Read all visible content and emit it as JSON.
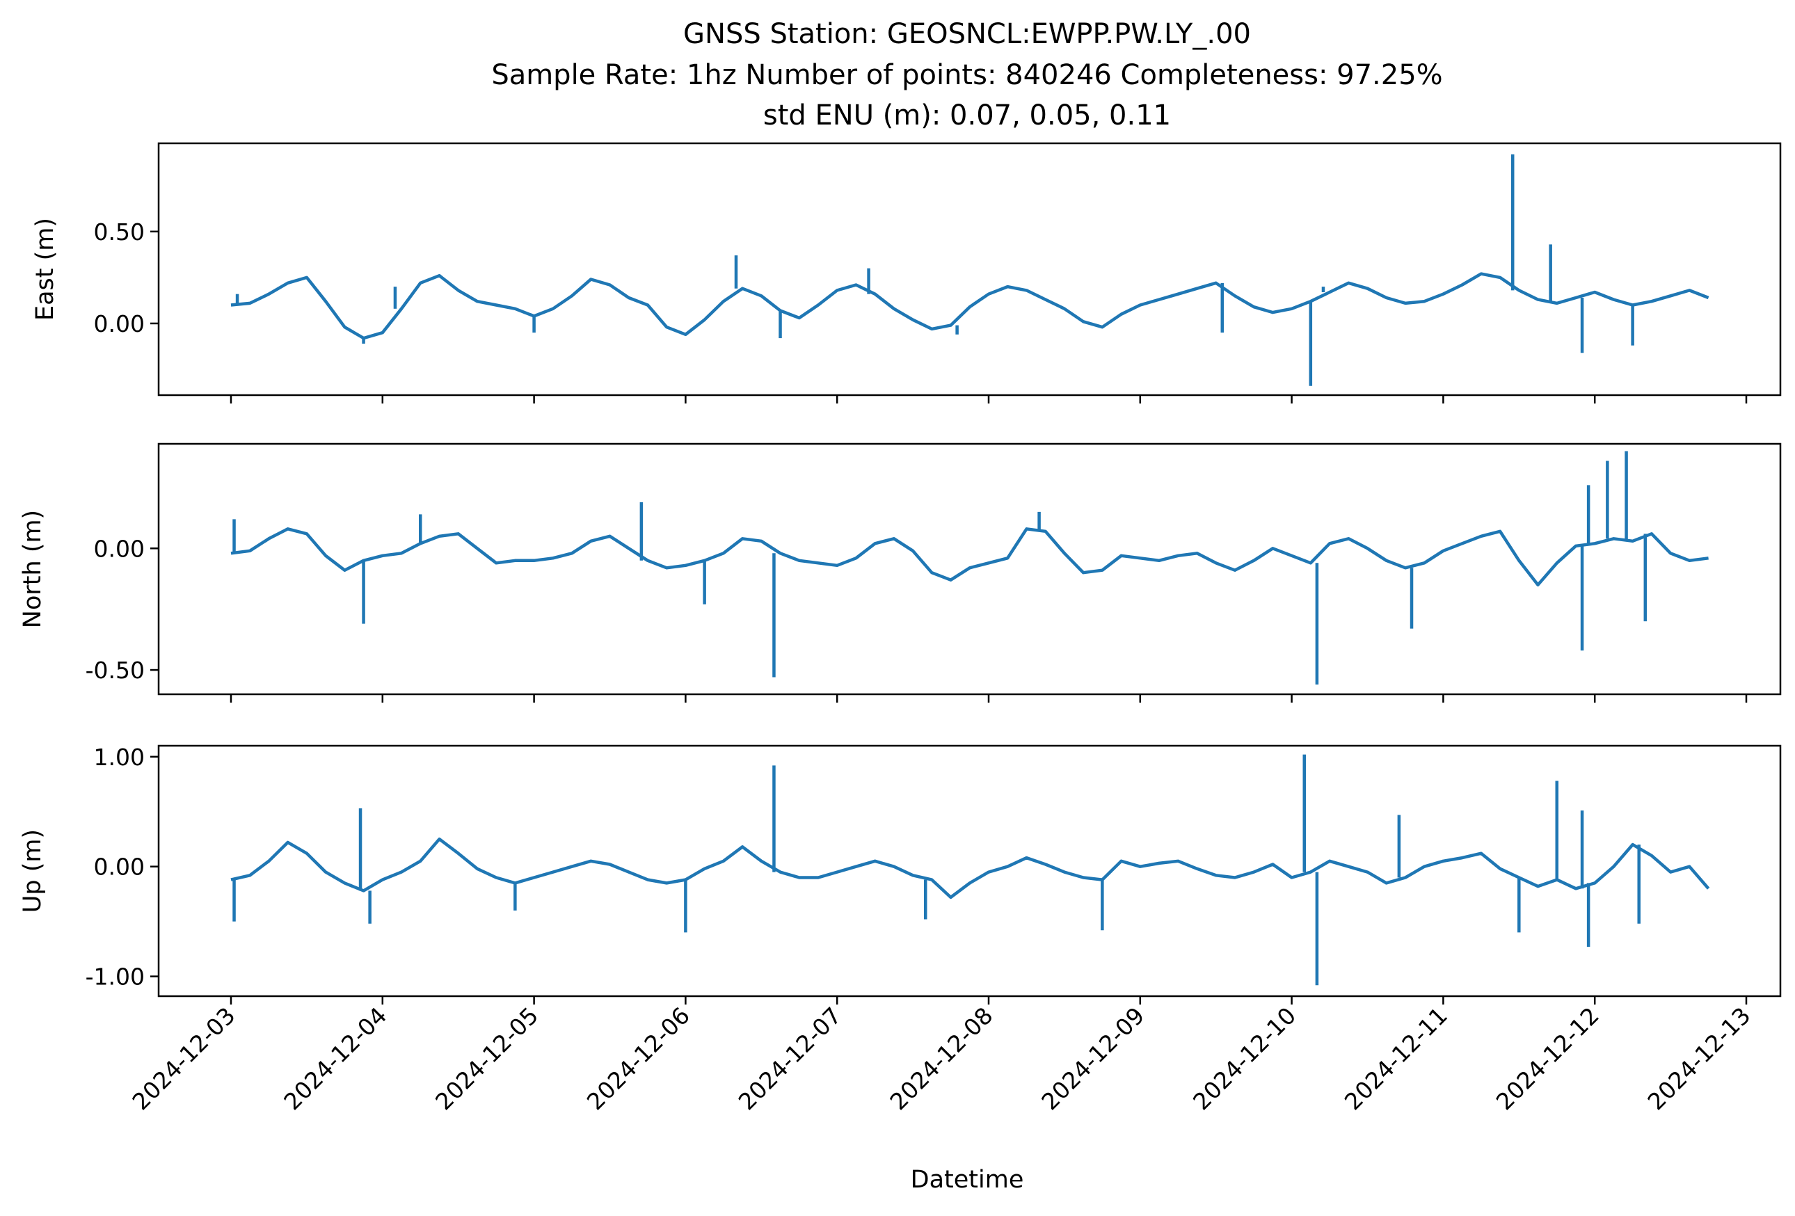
{
  "chart_data": {
    "type": "line",
    "title_lines": [
      "GNSS Station: GEOSNCL:EWPP.PW.LY_.00",
      "Sample Rate: 1hz   Number of points: 840246    Completeness:  97.25%",
      "std ENU (m):  0.07, 0.05, 0.11"
    ],
    "xlabel": "Datetime",
    "x_range": [
      "2024-12-03",
      "2024-12-12 18:00"
    ],
    "x_ticks": [
      "2024-12-03",
      "2024-12-04",
      "2024-12-05",
      "2024-12-06",
      "2024-12-07",
      "2024-12-08",
      "2024-12-09",
      "2024-12-10",
      "2024-12-11",
      "2024-12-12",
      "2024-12-13"
    ],
    "color": "#1f77b4",
    "grid": false,
    "panels": [
      {
        "ylabel": "East (m)",
        "ylim": [
          -0.39,
          0.98
        ],
        "yticks": [
          {
            "value": 0.5,
            "label": "0.50"
          },
          {
            "value": 0.0,
            "label": "0.00"
          }
        ],
        "series": {
          "x": [
            "2024-12-03 00:00",
            "2024-12-03 03:00",
            "2024-12-03 06:00",
            "2024-12-03 09:00",
            "2024-12-03 12:00",
            "2024-12-03 15:00",
            "2024-12-03 18:00",
            "2024-12-03 21:00",
            "2024-12-04 00:00",
            "2024-12-04 03:00",
            "2024-12-04 06:00",
            "2024-12-04 09:00",
            "2024-12-04 12:00",
            "2024-12-04 15:00",
            "2024-12-04 18:00",
            "2024-12-04 21:00",
            "2024-12-05 00:00",
            "2024-12-05 03:00",
            "2024-12-05 06:00",
            "2024-12-05 09:00",
            "2024-12-05 12:00",
            "2024-12-05 15:00",
            "2024-12-05 18:00",
            "2024-12-05 21:00",
            "2024-12-06 00:00",
            "2024-12-06 03:00",
            "2024-12-06 06:00",
            "2024-12-06 09:00",
            "2024-12-06 12:00",
            "2024-12-06 15:00",
            "2024-12-06 18:00",
            "2024-12-06 21:00",
            "2024-12-07 00:00",
            "2024-12-07 03:00",
            "2024-12-07 06:00",
            "2024-12-07 09:00",
            "2024-12-07 12:00",
            "2024-12-07 15:00",
            "2024-12-07 18:00",
            "2024-12-07 21:00",
            "2024-12-08 00:00",
            "2024-12-08 03:00",
            "2024-12-08 06:00",
            "2024-12-08 09:00",
            "2024-12-08 12:00",
            "2024-12-08 15:00",
            "2024-12-08 18:00",
            "2024-12-08 21:00",
            "2024-12-09 00:00",
            "2024-12-09 03:00",
            "2024-12-09 06:00",
            "2024-12-09 09:00",
            "2024-12-09 12:00",
            "2024-12-09 15:00",
            "2024-12-09 18:00",
            "2024-12-09 21:00",
            "2024-12-10 00:00",
            "2024-12-10 03:00",
            "2024-12-10 06:00",
            "2024-12-10 09:00",
            "2024-12-10 12:00",
            "2024-12-10 15:00",
            "2024-12-10 18:00",
            "2024-12-10 21:00",
            "2024-12-11 00:00",
            "2024-12-11 03:00",
            "2024-12-11 06:00",
            "2024-12-11 09:00",
            "2024-12-11 12:00",
            "2024-12-11 15:00",
            "2024-12-11 18:00",
            "2024-12-11 21:00",
            "2024-12-12 00:00",
            "2024-12-12 03:00",
            "2024-12-12 06:00",
            "2024-12-12 09:00",
            "2024-12-12 12:00",
            "2024-12-12 15:00",
            "2024-12-12 18:00"
          ],
          "y": [
            0.1,
            0.11,
            0.16,
            0.22,
            0.25,
            0.12,
            -0.02,
            -0.08,
            -0.05,
            0.08,
            0.22,
            0.26,
            0.18,
            0.12,
            0.1,
            0.08,
            0.04,
            0.08,
            0.15,
            0.24,
            0.21,
            0.14,
            0.1,
            -0.02,
            -0.06,
            0.02,
            0.12,
            0.19,
            0.15,
            0.07,
            0.03,
            0.1,
            0.18,
            0.21,
            0.16,
            0.08,
            0.02,
            -0.03,
            -0.01,
            0.09,
            0.16,
            0.2,
            0.18,
            0.13,
            0.08,
            0.01,
            -0.02,
            0.05,
            0.1,
            0.13,
            0.16,
            0.19,
            0.22,
            0.15,
            0.09,
            0.06,
            0.08,
            0.12,
            0.17,
            0.22,
            0.19,
            0.14,
            0.11,
            0.12,
            0.16,
            0.21,
            0.27,
            0.25,
            0.18,
            0.13,
            0.11,
            0.14,
            0.17,
            0.13,
            0.1,
            0.12,
            0.15,
            0.18,
            0.14
          ]
        },
        "spikes": [
          {
            "x": "2024-12-03 01:00",
            "y": 0.16
          },
          {
            "x": "2024-12-03 21:00",
            "y": -0.11
          },
          {
            "x": "2024-12-04 02:00",
            "y": 0.2
          },
          {
            "x": "2024-12-05 00:00",
            "y": -0.05
          },
          {
            "x": "2024-12-06 08:00",
            "y": 0.37
          },
          {
            "x": "2024-12-06 15:00",
            "y": -0.08
          },
          {
            "x": "2024-12-07 05:00",
            "y": 0.3
          },
          {
            "x": "2024-12-07 19:00",
            "y": -0.06
          },
          {
            "x": "2024-12-09 13:00",
            "y": -0.05
          },
          {
            "x": "2024-12-10 03:00",
            "y": -0.34
          },
          {
            "x": "2024-12-10 05:00",
            "y": 0.2
          },
          {
            "x": "2024-12-11 11:00",
            "y": 0.92
          },
          {
            "x": "2024-12-11 17:00",
            "y": 0.43
          },
          {
            "x": "2024-12-11 22:00",
            "y": -0.16
          },
          {
            "x": "2024-12-12 06:00",
            "y": -0.12
          }
        ]
      },
      {
        "ylabel": "North (m)",
        "ylim": [
          -0.6,
          0.43
        ],
        "yticks": [
          {
            "value": 0.0,
            "label": "0.00"
          },
          {
            "value": -0.5,
            "label": "-0.50"
          }
        ],
        "series": {
          "x": [
            "2024-12-03 00:00",
            "2024-12-03 03:00",
            "2024-12-03 06:00",
            "2024-12-03 09:00",
            "2024-12-03 12:00",
            "2024-12-03 15:00",
            "2024-12-03 18:00",
            "2024-12-03 21:00",
            "2024-12-04 00:00",
            "2024-12-04 03:00",
            "2024-12-04 06:00",
            "2024-12-04 09:00",
            "2024-12-04 12:00",
            "2024-12-04 15:00",
            "2024-12-04 18:00",
            "2024-12-04 21:00",
            "2024-12-05 00:00",
            "2024-12-05 03:00",
            "2024-12-05 06:00",
            "2024-12-05 09:00",
            "2024-12-05 12:00",
            "2024-12-05 15:00",
            "2024-12-05 18:00",
            "2024-12-05 21:00",
            "2024-12-06 00:00",
            "2024-12-06 03:00",
            "2024-12-06 06:00",
            "2024-12-06 09:00",
            "2024-12-06 12:00",
            "2024-12-06 15:00",
            "2024-12-06 18:00",
            "2024-12-06 21:00",
            "2024-12-07 00:00",
            "2024-12-07 03:00",
            "2024-12-07 06:00",
            "2024-12-07 09:00",
            "2024-12-07 12:00",
            "2024-12-07 15:00",
            "2024-12-07 18:00",
            "2024-12-07 21:00",
            "2024-12-08 00:00",
            "2024-12-08 03:00",
            "2024-12-08 06:00",
            "2024-12-08 09:00",
            "2024-12-08 12:00",
            "2024-12-08 15:00",
            "2024-12-08 18:00",
            "2024-12-08 21:00",
            "2024-12-09 00:00",
            "2024-12-09 03:00",
            "2024-12-09 06:00",
            "2024-12-09 09:00",
            "2024-12-09 12:00",
            "2024-12-09 15:00",
            "2024-12-09 18:00",
            "2024-12-09 21:00",
            "2024-12-10 00:00",
            "2024-12-10 03:00",
            "2024-12-10 06:00",
            "2024-12-10 09:00",
            "2024-12-10 12:00",
            "2024-12-10 15:00",
            "2024-12-10 18:00",
            "2024-12-10 21:00",
            "2024-12-11 00:00",
            "2024-12-11 03:00",
            "2024-12-11 06:00",
            "2024-12-11 09:00",
            "2024-12-11 12:00",
            "2024-12-11 15:00",
            "2024-12-11 18:00",
            "2024-12-11 21:00",
            "2024-12-12 00:00",
            "2024-12-12 03:00",
            "2024-12-12 06:00",
            "2024-12-12 09:00",
            "2024-12-12 12:00",
            "2024-12-12 15:00",
            "2024-12-12 18:00"
          ],
          "y": [
            -0.02,
            -0.01,
            0.04,
            0.08,
            0.06,
            -0.03,
            -0.09,
            -0.05,
            -0.03,
            -0.02,
            0.02,
            0.05,
            0.06,
            0.0,
            -0.06,
            -0.05,
            -0.05,
            -0.04,
            -0.02,
            0.03,
            0.05,
            0.0,
            -0.05,
            -0.08,
            -0.07,
            -0.05,
            -0.02,
            0.04,
            0.03,
            -0.02,
            -0.05,
            -0.06,
            -0.07,
            -0.04,
            0.02,
            0.04,
            -0.01,
            -0.1,
            -0.13,
            -0.08,
            -0.06,
            -0.04,
            0.08,
            0.07,
            -0.02,
            -0.1,
            -0.09,
            -0.03,
            -0.04,
            -0.05,
            -0.03,
            -0.02,
            -0.06,
            -0.09,
            -0.05,
            0.0,
            -0.03,
            -0.06,
            0.02,
            0.04,
            0.0,
            -0.05,
            -0.08,
            -0.06,
            -0.01,
            0.02,
            0.05,
            0.07,
            -0.05,
            -0.15,
            -0.06,
            0.01,
            0.02,
            0.04,
            0.03,
            0.06,
            -0.02,
            -0.05,
            -0.04
          ]
        },
        "spikes": [
          {
            "x": "2024-12-03 00:30",
            "y": 0.12
          },
          {
            "x": "2024-12-03 21:00",
            "y": -0.31
          },
          {
            "x": "2024-12-04 06:00",
            "y": 0.14
          },
          {
            "x": "2024-12-05 17:00",
            "y": 0.19
          },
          {
            "x": "2024-12-06 03:00",
            "y": -0.23
          },
          {
            "x": "2024-12-06 14:00",
            "y": -0.53
          },
          {
            "x": "2024-12-08 08:00",
            "y": 0.15
          },
          {
            "x": "2024-12-10 04:00",
            "y": -0.56
          },
          {
            "x": "2024-12-10 19:00",
            "y": -0.33
          },
          {
            "x": "2024-12-11 22:00",
            "y": -0.42
          },
          {
            "x": "2024-12-11 23:00",
            "y": 0.26
          },
          {
            "x": "2024-12-12 02:00",
            "y": 0.36
          },
          {
            "x": "2024-12-12 05:00",
            "y": 0.4
          },
          {
            "x": "2024-12-12 08:00",
            "y": -0.3
          }
        ]
      },
      {
        "ylabel": "Up (m)",
        "ylim": [
          -1.18,
          1.1
        ],
        "yticks": [
          {
            "value": 1.0,
            "label": "1.00"
          },
          {
            "value": 0.0,
            "label": "0.00"
          },
          {
            "value": -1.0,
            "label": "-1.00"
          }
        ],
        "series": {
          "x": [
            "2024-12-03 00:00",
            "2024-12-03 03:00",
            "2024-12-03 06:00",
            "2024-12-03 09:00",
            "2024-12-03 12:00",
            "2024-12-03 15:00",
            "2024-12-03 18:00",
            "2024-12-03 21:00",
            "2024-12-04 00:00",
            "2024-12-04 03:00",
            "2024-12-04 06:00",
            "2024-12-04 09:00",
            "2024-12-04 12:00",
            "2024-12-04 15:00",
            "2024-12-04 18:00",
            "2024-12-04 21:00",
            "2024-12-05 00:00",
            "2024-12-05 03:00",
            "2024-12-05 06:00",
            "2024-12-05 09:00",
            "2024-12-05 12:00",
            "2024-12-05 15:00",
            "2024-12-05 18:00",
            "2024-12-05 21:00",
            "2024-12-06 00:00",
            "2024-12-06 03:00",
            "2024-12-06 06:00",
            "2024-12-06 09:00",
            "2024-12-06 12:00",
            "2024-12-06 15:00",
            "2024-12-06 18:00",
            "2024-12-06 21:00",
            "2024-12-07 00:00",
            "2024-12-07 03:00",
            "2024-12-07 06:00",
            "2024-12-07 09:00",
            "2024-12-07 12:00",
            "2024-12-07 15:00",
            "2024-12-07 18:00",
            "2024-12-07 21:00",
            "2024-12-08 00:00",
            "2024-12-08 03:00",
            "2024-12-08 06:00",
            "2024-12-08 09:00",
            "2024-12-08 12:00",
            "2024-12-08 15:00",
            "2024-12-08 18:00",
            "2024-12-08 21:00",
            "2024-12-09 00:00",
            "2024-12-09 03:00",
            "2024-12-09 06:00",
            "2024-12-09 09:00",
            "2024-12-09 12:00",
            "2024-12-09 15:00",
            "2024-12-09 18:00",
            "2024-12-09 21:00",
            "2024-12-10 00:00",
            "2024-12-10 03:00",
            "2024-12-10 06:00",
            "2024-12-10 09:00",
            "2024-12-10 12:00",
            "2024-12-10 15:00",
            "2024-12-10 18:00",
            "2024-12-10 21:00",
            "2024-12-11 00:00",
            "2024-12-11 03:00",
            "2024-12-11 06:00",
            "2024-12-11 09:00",
            "2024-12-11 12:00",
            "2024-12-11 15:00",
            "2024-12-11 18:00",
            "2024-12-11 21:00",
            "2024-12-12 00:00",
            "2024-12-12 03:00",
            "2024-12-12 06:00",
            "2024-12-12 09:00",
            "2024-12-12 12:00",
            "2024-12-12 15:00",
            "2024-12-12 18:00"
          ],
          "y": [
            -0.12,
            -0.08,
            0.05,
            0.22,
            0.12,
            -0.05,
            -0.15,
            -0.22,
            -0.12,
            -0.05,
            0.05,
            0.25,
            0.12,
            -0.02,
            -0.1,
            -0.15,
            -0.1,
            -0.05,
            0.0,
            0.05,
            0.02,
            -0.05,
            -0.12,
            -0.15,
            -0.12,
            -0.02,
            0.05,
            0.18,
            0.05,
            -0.05,
            -0.1,
            -0.1,
            -0.05,
            0.0,
            0.05,
            0.0,
            -0.08,
            -0.12,
            -0.28,
            -0.15,
            -0.05,
            0.0,
            0.08,
            0.02,
            -0.05,
            -0.1,
            -0.12,
            0.05,
            0.0,
            0.03,
            0.05,
            -0.02,
            -0.08,
            -0.1,
            -0.05,
            0.02,
            -0.1,
            -0.05,
            0.05,
            0.0,
            -0.05,
            -0.15,
            -0.1,
            0.0,
            0.05,
            0.08,
            0.12,
            -0.02,
            -0.1,
            -0.18,
            -0.12,
            -0.2,
            -0.15,
            0.0,
            0.2,
            0.1,
            -0.05,
            0.0,
            -0.2
          ]
        },
        "spikes": [
          {
            "x": "2024-12-03 00:30",
            "y": -0.5
          },
          {
            "x": "2024-12-03 20:30",
            "y": 0.53
          },
          {
            "x": "2024-12-03 22:00",
            "y": -0.52
          },
          {
            "x": "2024-12-04 21:00",
            "y": -0.4
          },
          {
            "x": "2024-12-06 00:00",
            "y": -0.6
          },
          {
            "x": "2024-12-06 14:00",
            "y": 0.92
          },
          {
            "x": "2024-12-07 14:00",
            "y": -0.48
          },
          {
            "x": "2024-12-08 18:00",
            "y": -0.58
          },
          {
            "x": "2024-12-10 02:00",
            "y": 1.02
          },
          {
            "x": "2024-12-10 04:00",
            "y": -1.08
          },
          {
            "x": "2024-12-10 17:00",
            "y": 0.47
          },
          {
            "x": "2024-12-11 12:00",
            "y": -0.6
          },
          {
            "x": "2024-12-11 18:00",
            "y": 0.78
          },
          {
            "x": "2024-12-11 22:00",
            "y": 0.51
          },
          {
            "x": "2024-12-11 23:00",
            "y": -0.73
          },
          {
            "x": "2024-12-12 07:00",
            "y": -0.52
          }
        ]
      }
    ]
  }
}
